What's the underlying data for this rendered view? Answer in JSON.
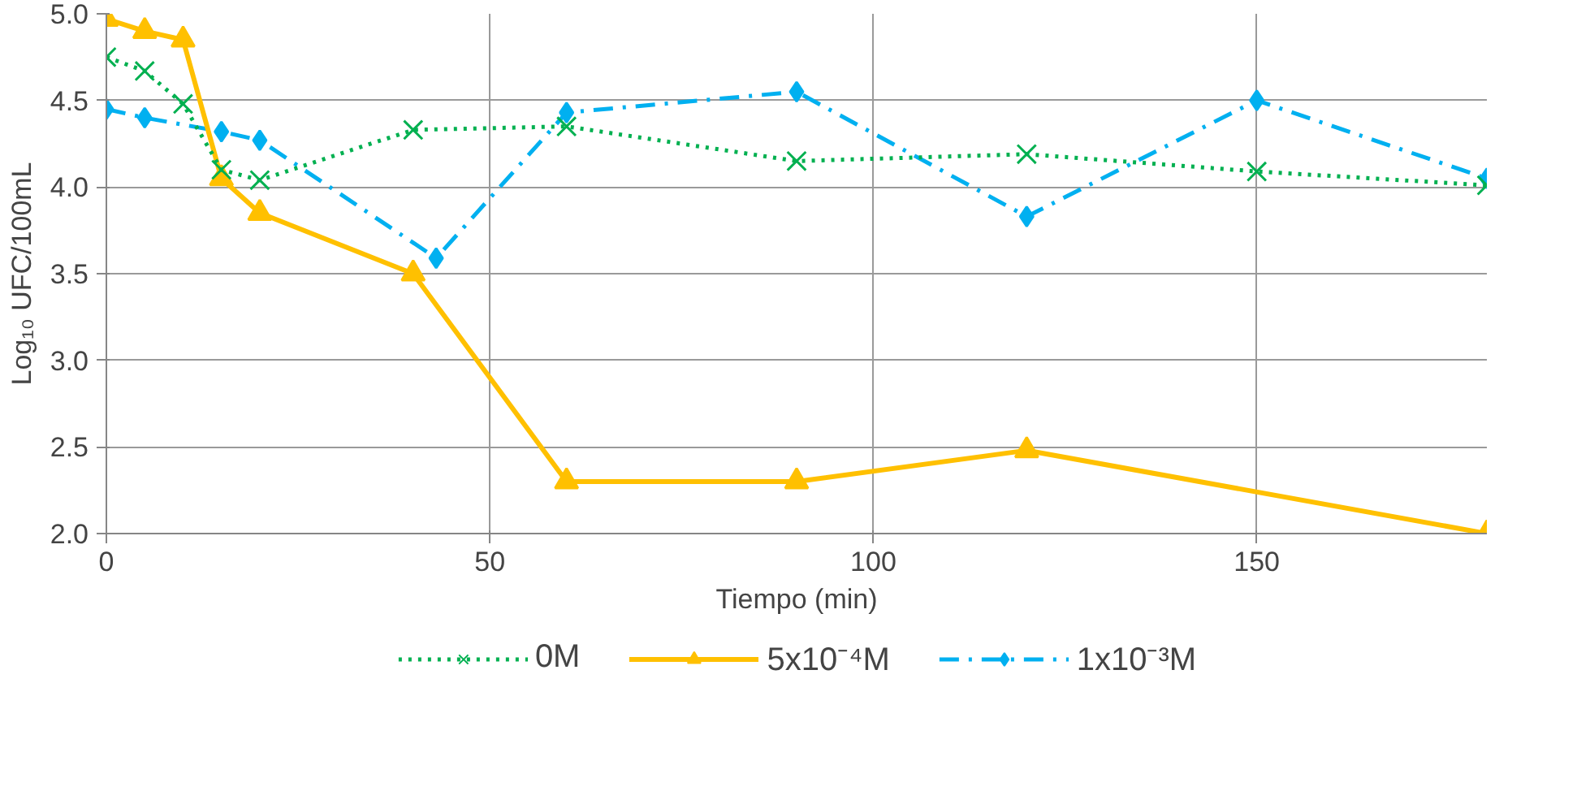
{
  "chart_data": {
    "type": "line",
    "xlabel": "Tiempo (min)",
    "ylabel": "Log₁₀ UFC/100mL",
    "xlim": [
      0,
      180
    ],
    "xticks": [
      0,
      50,
      100,
      150
    ],
    "ylim": [
      2.0,
      5.0
    ],
    "yticks": [
      {
        "value": 2.0,
        "label": "2.0"
      },
      {
        "value": 2.5,
        "label": "2.5"
      },
      {
        "value": 3.0,
        "label": "3.0"
      },
      {
        "value": 3.5,
        "label": "3.5"
      },
      {
        "value": 4.0,
        "label": "4.0"
      },
      {
        "value": 4.5,
        "label": "4.5"
      },
      {
        "value": 5.0,
        "label": "5.0"
      }
    ],
    "grid": true,
    "legend": "bottom",
    "series": [
      {
        "name": "0M",
        "color": "#00b050",
        "marker": "cross",
        "line_style": "dotted",
        "x": [
          0,
          5,
          10,
          15,
          20,
          40,
          60,
          90,
          120,
          150,
          180
        ],
        "values": [
          4.75,
          4.67,
          4.48,
          4.1,
          4.04,
          4.33,
          4.35,
          4.15,
          4.19,
          4.09,
          4.01
        ]
      },
      {
        "name": "5x10⁻⁴M",
        "color": "#ffc000",
        "marker": "triangle",
        "line_style": "solid",
        "x": [
          0,
          5,
          10,
          15,
          20,
          40,
          60,
          90,
          120,
          180
        ],
        "values": [
          4.97,
          4.9,
          4.85,
          4.05,
          3.85,
          3.5,
          2.3,
          2.3,
          2.48,
          2.0
        ]
      },
      {
        "name": "1x10⁻³M",
        "color": "#00b0f0",
        "marker": "diamond",
        "line_style": "dashdot",
        "x": [
          0,
          5,
          15,
          20,
          43,
          60,
          90,
          120,
          150,
          180
        ],
        "values": [
          4.45,
          4.4,
          4.32,
          4.27,
          3.59,
          4.43,
          4.55,
          3.83,
          4.5,
          4.05
        ]
      }
    ]
  }
}
